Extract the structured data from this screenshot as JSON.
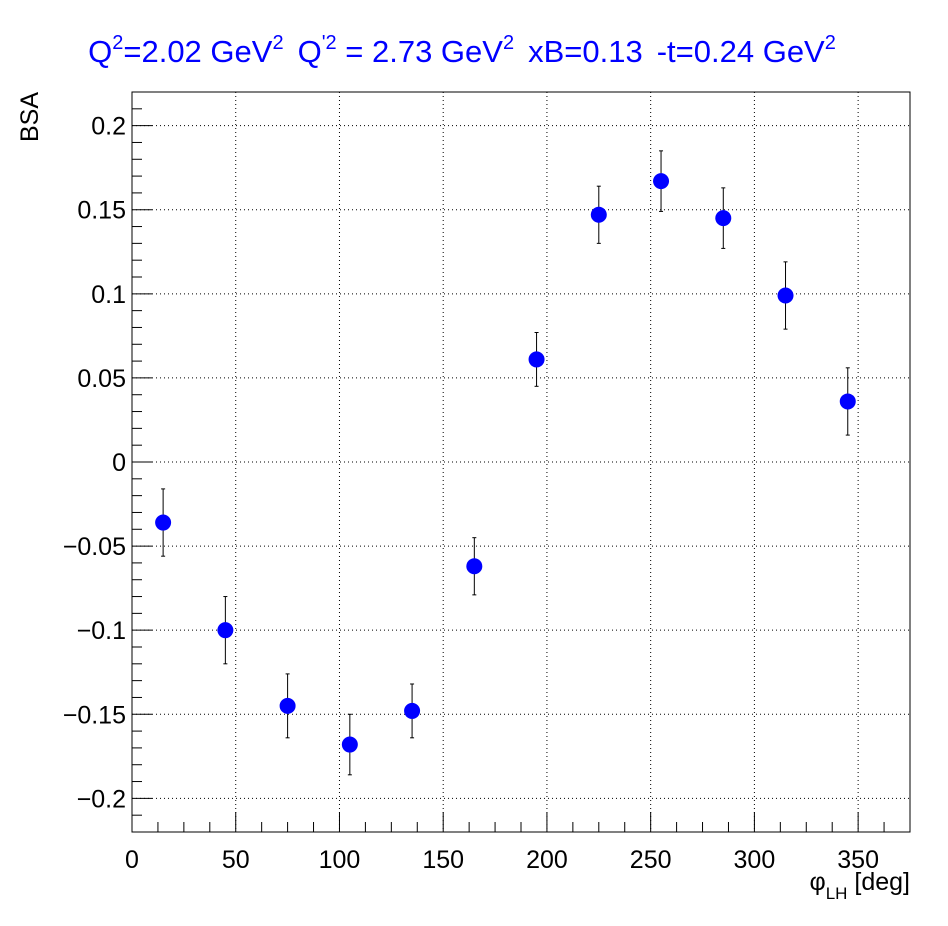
{
  "chart_data": {
    "type": "scatter",
    "title": {
      "q2_base": "Q",
      "q2_sup": "2",
      "q2_value": "=2.02 GeV",
      "q2_unit_sup": "2",
      "qp2_base": "Q",
      "qp2_sup": "'2",
      "qp2_value": " = 2.73 GeV",
      "qp2_unit_sup": "2",
      "xb": "xB=0.13",
      "t_value": "-t=0.24 GeV",
      "t_unit_sup": "2"
    },
    "xlabel": {
      "symbol": "φ",
      "subscript": "LH",
      "unit": " [deg]"
    },
    "ylabel": "BSA",
    "xlim": [
      0,
      375
    ],
    "ylim": [
      -0.22,
      0.22
    ],
    "x_ticks": [
      0,
      50,
      100,
      150,
      200,
      250,
      300,
      350
    ],
    "x_tick_labels": [
      "0",
      "50",
      "100",
      "150",
      "200",
      "250",
      "300",
      "350"
    ],
    "y_ticks": [
      -0.2,
      -0.15,
      -0.1,
      -0.05,
      0,
      0.05,
      0.1,
      0.15,
      0.2
    ],
    "y_tick_labels": [
      "−0.2",
      "−0.15",
      "−0.1",
      "−0.05",
      "0",
      "0.05",
      "0.1",
      "0.15",
      "0.2"
    ],
    "grid": true,
    "marker_color": "#0000ff",
    "series": [
      {
        "x": [
          15,
          45,
          75,
          105,
          135,
          165,
          195,
          225,
          255,
          285,
          315,
          345
        ],
        "y": [
          -0.036,
          -0.1,
          -0.145,
          -0.168,
          -0.148,
          -0.062,
          0.061,
          0.147,
          0.167,
          0.145,
          0.099,
          0.036
        ],
        "yerr": [
          0.02,
          0.02,
          0.019,
          0.018,
          0.016,
          0.017,
          0.016,
          0.017,
          0.018,
          0.018,
          0.02,
          0.02
        ]
      }
    ]
  }
}
